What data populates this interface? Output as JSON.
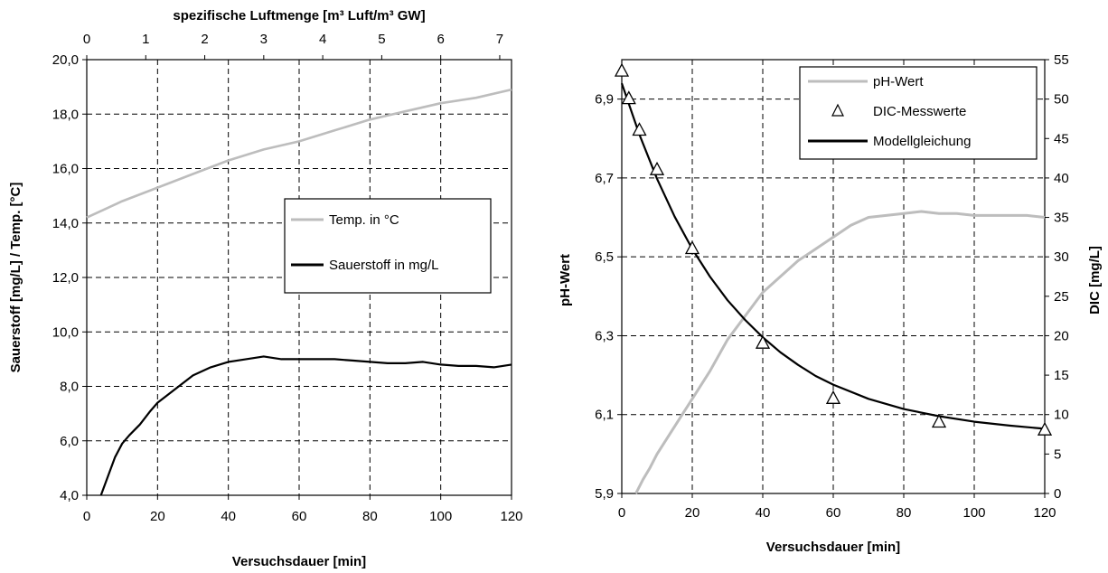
{
  "chart_data": [
    {
      "type": "line",
      "xlabel": "Versuchsdauer [min]",
      "x2label": "spezifische Luftmenge [m³ Luft/m³ GW]",
      "ylabel": "Sauerstoff  [mg/L]  /  Temp. [°C]",
      "xlim": [
        0,
        120
      ],
      "x2lim": [
        0,
        7.2
      ],
      "ylim": [
        4,
        20
      ],
      "x_ticks": [
        "0",
        "20",
        "40",
        "60",
        "80",
        "100",
        "120"
      ],
      "x2_ticks": [
        "0",
        "1",
        "2",
        "3",
        "4",
        "5",
        "6",
        "7"
      ],
      "y_ticks": [
        "4,0",
        "6,0",
        "8,0",
        "10,0",
        "12,0",
        "14,0",
        "16,0",
        "18,0",
        "20,0"
      ],
      "grid": true,
      "legend_position": "middle-right",
      "series": [
        {
          "name": "Temp. in °C",
          "color": "#bdbdbd",
          "x": [
            0,
            5,
            10,
            20,
            30,
            40,
            50,
            60,
            70,
            80,
            90,
            100,
            110,
            120
          ],
          "y": [
            14.2,
            14.5,
            14.8,
            15.3,
            15.8,
            16.3,
            16.7,
            17.0,
            17.4,
            17.8,
            18.1,
            18.4,
            18.6,
            18.9
          ]
        },
        {
          "name": "Sauerstoff in mg/L",
          "color": "#000000",
          "x": [
            4,
            6,
            8,
            10,
            12,
            15,
            18,
            20,
            25,
            30,
            35,
            40,
            45,
            50,
            55,
            60,
            65,
            70,
            75,
            80,
            85,
            90,
            95,
            100,
            105,
            110,
            115,
            120
          ],
          "y": [
            4.0,
            4.7,
            5.4,
            5.9,
            6.2,
            6.6,
            7.1,
            7.4,
            7.9,
            8.4,
            8.7,
            8.9,
            9.0,
            9.1,
            9.0,
            9.0,
            9.0,
            9.0,
            8.95,
            8.9,
            8.85,
            8.85,
            8.9,
            8.8,
            8.75,
            8.75,
            8.7,
            8.8
          ]
        }
      ]
    },
    {
      "type": "line",
      "xlabel": "Versuchsdauer [min]",
      "ylabel": "pH-Wert",
      "y2label": "DIC [mg/L]",
      "xlim": [
        0,
        120
      ],
      "ylim": [
        5.9,
        7.0
      ],
      "y2lim": [
        0,
        55
      ],
      "x_ticks": [
        "0",
        "20",
        "40",
        "60",
        "80",
        "100",
        "120"
      ],
      "y_ticks": [
        "5,9",
        "6,1",
        "6,3",
        "6,5",
        "6,7",
        "6,9"
      ],
      "y2_ticks": [
        "0",
        "5",
        "10",
        "15",
        "20",
        "25",
        "30",
        "35",
        "40",
        "45",
        "50",
        "55"
      ],
      "grid": true,
      "legend_position": "top-right",
      "series": [
        {
          "name": "pH-Wert",
          "color": "#bdbdbd",
          "axis": "left",
          "x": [
            4,
            6,
            8,
            10,
            15,
            20,
            25,
            30,
            35,
            40,
            45,
            50,
            55,
            60,
            65,
            70,
            75,
            80,
            85,
            90,
            95,
            100,
            105,
            110,
            115,
            120
          ],
          "y": [
            5.9,
            5.935,
            5.965,
            6.0,
            6.07,
            6.14,
            6.21,
            6.29,
            6.35,
            6.41,
            6.45,
            6.49,
            6.52,
            6.55,
            6.58,
            6.6,
            6.605,
            6.61,
            6.615,
            6.61,
            6.61,
            6.605,
            6.605,
            6.605,
            6.605,
            6.6
          ]
        },
        {
          "name": "DIC-Messwerte",
          "color": "#000000",
          "axis": "right",
          "marker": "triangle",
          "x": [
            0,
            2,
            5,
            10,
            20,
            40,
            60,
            90,
            120
          ],
          "y": [
            53.5,
            50.0,
            46.0,
            41.0,
            31.0,
            19.0,
            12.0,
            9.0,
            8.0
          ]
        },
        {
          "name": "Modellgleichung",
          "color": "#000000",
          "axis": "right",
          "x": [
            0,
            5,
            10,
            15,
            20,
            25,
            30,
            35,
            40,
            45,
            50,
            55,
            60,
            70,
            80,
            90,
            100,
            110,
            120
          ],
          "y": [
            52.0,
            45.5,
            39.9,
            35.1,
            31.0,
            27.5,
            24.5,
            22.0,
            19.8,
            17.9,
            16.3,
            14.9,
            13.8,
            12.0,
            10.7,
            9.8,
            9.1,
            8.6,
            8.2
          ]
        }
      ]
    }
  ]
}
